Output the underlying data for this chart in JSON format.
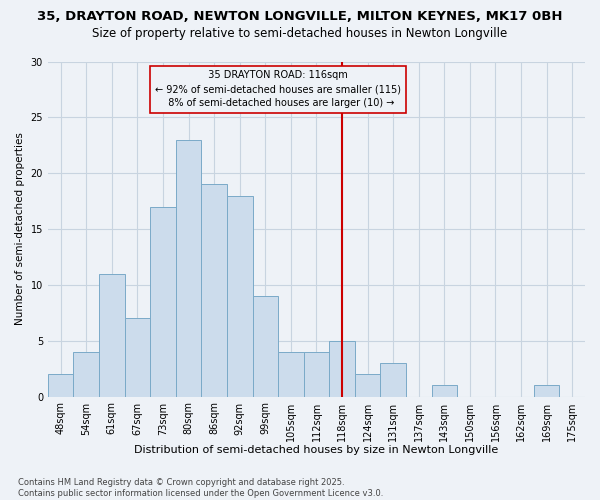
{
  "title": "35, DRAYTON ROAD, NEWTON LONGVILLE, MILTON KEYNES, MK17 0BH",
  "subtitle": "Size of property relative to semi-detached houses in Newton Longville",
  "xlabel": "Distribution of semi-detached houses by size in Newton Longville",
  "ylabel": "Number of semi-detached properties",
  "categories": [
    "48sqm",
    "54sqm",
    "61sqm",
    "67sqm",
    "73sqm",
    "80sqm",
    "86sqm",
    "92sqm",
    "99sqm",
    "105sqm",
    "112sqm",
    "118sqm",
    "124sqm",
    "131sqm",
    "137sqm",
    "143sqm",
    "150sqm",
    "156sqm",
    "162sqm",
    "169sqm",
    "175sqm"
  ],
  "values": [
    2,
    4,
    11,
    7,
    17,
    23,
    19,
    18,
    9,
    4,
    4,
    5,
    2,
    3,
    0,
    1,
    0,
    0,
    0,
    1,
    0
  ],
  "bar_color": "#ccdcec",
  "bar_edgecolor": "#7aaac8",
  "vline_idx": 11,
  "vline_label": "35 DRAYTON ROAD: 116sqm",
  "pct_smaller": "92%",
  "n_smaller": 115,
  "pct_larger": "8%",
  "n_larger": 10,
  "annotation_box_color": "#cc0000",
  "ylim": [
    0,
    30
  ],
  "yticks": [
    0,
    5,
    10,
    15,
    20,
    25,
    30
  ],
  "footnote": "Contains HM Land Registry data © Crown copyright and database right 2025.\nContains public sector information licensed under the Open Government Licence v3.0.",
  "bg_color": "#eef2f7",
  "grid_color": "#c8d4e0",
  "title_fontsize": 9.5,
  "subtitle_fontsize": 8.5,
  "xlabel_fontsize": 8,
  "ylabel_fontsize": 7.5,
  "tick_fontsize": 7,
  "footnote_fontsize": 6,
  "ann_fontsize": 7
}
